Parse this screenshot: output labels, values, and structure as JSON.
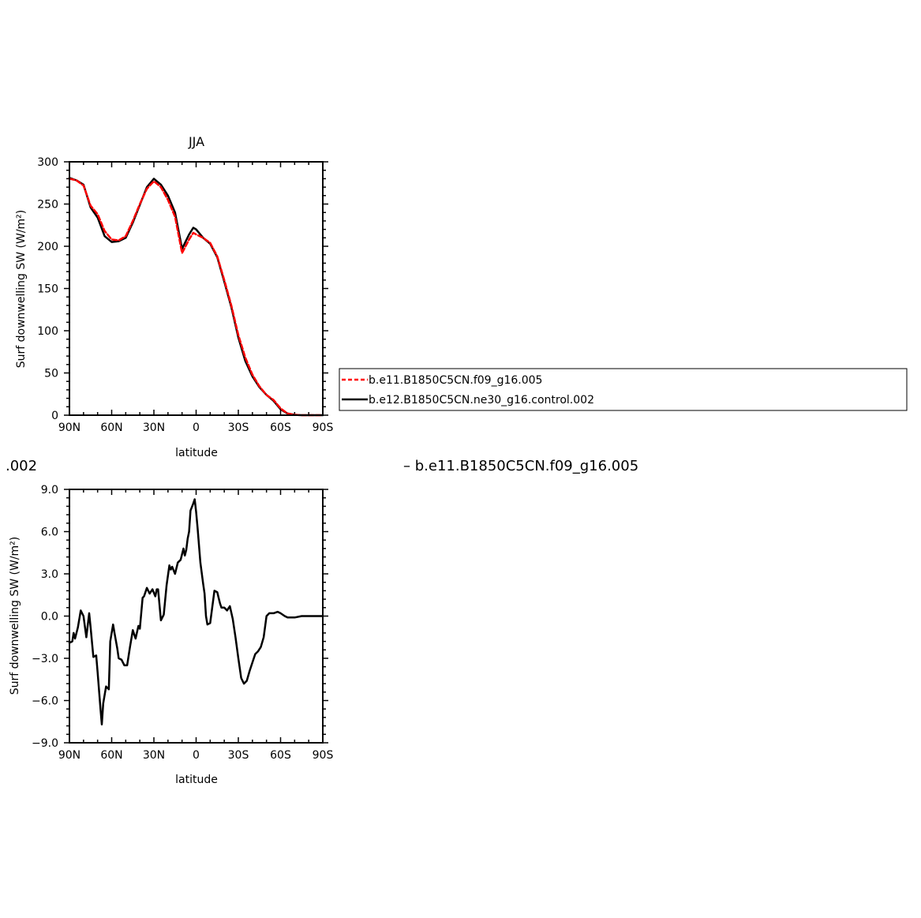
{
  "chart_data": [
    {
      "type": "line",
      "title": "JJA",
      "xlabel": "latitude",
      "ylabel": "Surf downwelling SW (W/m²)",
      "x_ticks": [
        "90N",
        "60N",
        "30N",
        "0",
        "30S",
        "60S",
        "90S"
      ],
      "y_ticks": [
        "0",
        "50",
        "100",
        "150",
        "200",
        "250",
        "300"
      ],
      "xlim": [
        90,
        -90
      ],
      "ylim": [
        0,
        300
      ],
      "grid": false,
      "legend_placement": "right",
      "x": [
        90,
        85,
        80,
        75,
        70,
        65,
        60,
        55,
        50,
        45,
        40,
        35,
        30,
        25,
        20,
        15,
        10,
        5,
        2,
        0,
        -5,
        -10,
        -15,
        -20,
        -25,
        -30,
        -35,
        -40,
        -45,
        -50,
        -55,
        -60,
        -65,
        -70,
        -75,
        -80,
        -85,
        -90
      ],
      "series": [
        {
          "name": "b.e11.B1850C5CN.f09_g16.005",
          "color": "#ff0000",
          "style": "dashed",
          "values": [
            280,
            278,
            272,
            248,
            238,
            218,
            208,
            207,
            212,
            230,
            250,
            268,
            277,
            270,
            255,
            235,
            192,
            208,
            216,
            214,
            210,
            204,
            188,
            160,
            130,
            95,
            68,
            48,
            34,
            24,
            18,
            8,
            2,
            0.5,
            0,
            0,
            0,
            0
          ]
        },
        {
          "name": "b.e12.B1850C5CN.ne30_g16.control.002",
          "color": "#000000",
          "style": "solid",
          "values": [
            281,
            278,
            273,
            246,
            234,
            212,
            205,
            206,
            210,
            228,
            249,
            270,
            280,
            273,
            260,
            240,
            197,
            214,
            222,
            220,
            210,
            203,
            187,
            158,
            128,
            92,
            64,
            46,
            33,
            24,
            17,
            7,
            2,
            0.5,
            0,
            0,
            0,
            0
          ]
        }
      ]
    },
    {
      "type": "line",
      "title": "",
      "xlabel": "latitude",
      "ylabel": "Surf downwelling SW (W/m²)",
      "x_ticks": [
        "90N",
        "60N",
        "30N",
        "0",
        "30S",
        "60S",
        "90S"
      ],
      "y_ticks": [
        "−9.0",
        "−6.0",
        "−3.0",
        "0.0",
        "3.0",
        "6.0",
        "9.0"
      ],
      "xlim": [
        90,
        -90
      ],
      "ylim": [
        -9,
        9
      ],
      "grid": false,
      "x": [
        90,
        88,
        87,
        86,
        84,
        82,
        80,
        78,
        76,
        75,
        73,
        71,
        70,
        68,
        67,
        66,
        64,
        62,
        61,
        59,
        58,
        56,
        55,
        53,
        51,
        49,
        47,
        45,
        43,
        41,
        40,
        38,
        37,
        35,
        33,
        31,
        29,
        28,
        27,
        25,
        23,
        21,
        19,
        18,
        17,
        15,
        13,
        11,
        9,
        8,
        7,
        6,
        5,
        4,
        2,
        1,
        0,
        -1,
        -3,
        -5,
        -6,
        -7,
        -8,
        -10,
        -13,
        -15,
        -16,
        -17,
        -18,
        -20,
        -22,
        -24,
        -26,
        -28,
        -30,
        -32,
        -34,
        -36,
        -38,
        -40,
        -42,
        -44,
        -46,
        -48,
        -50,
        -52,
        -55,
        -58,
        -60,
        -63,
        -65,
        -68,
        -70,
        -75,
        -90
      ],
      "series": [
        {
          "name": "",
          "color": "#000000",
          "style": "solid",
          "values": [
            -1.9,
            -1.8,
            -1.2,
            -1.6,
            -0.8,
            0.4,
            0.0,
            -1.5,
            0.2,
            -0.8,
            -2.9,
            -2.8,
            -4.0,
            -6.5,
            -7.7,
            -6.2,
            -5.0,
            -5.2,
            -1.8,
            -0.6,
            -1.2,
            -2.3,
            -3.0,
            -3.1,
            -3.5,
            -3.5,
            -2.2,
            -1.0,
            -1.6,
            -0.7,
            -0.9,
            1.3,
            1.4,
            2.0,
            1.6,
            1.9,
            1.4,
            1.9,
            1.9,
            -0.3,
            0.1,
            2.2,
            3.6,
            3.3,
            3.5,
            3.0,
            3.8,
            4.0,
            4.8,
            4.3,
            4.7,
            5.5,
            6.0,
            7.5,
            8.0,
            8.3,
            7.4,
            6.3,
            3.8,
            2.3,
            1.6,
            0.0,
            -0.6,
            -0.5,
            1.8,
            1.7,
            1.3,
            0.9,
            0.6,
            0.6,
            0.4,
            0.7,
            -0.2,
            -1.5,
            -3.0,
            -4.4,
            -4.8,
            -4.6,
            -3.9,
            -3.3,
            -2.7,
            -2.5,
            -2.2,
            -1.5,
            0.0,
            0.2,
            0.2,
            0.3,
            0.2,
            0.0,
            -0.1,
            -0.1,
            -0.1,
            0.0,
            0.0
          ]
        }
      ]
    }
  ],
  "fragments": {
    "left": ".002",
    "right": "– b.e11.B1850C5CN.f09_g16.005"
  }
}
